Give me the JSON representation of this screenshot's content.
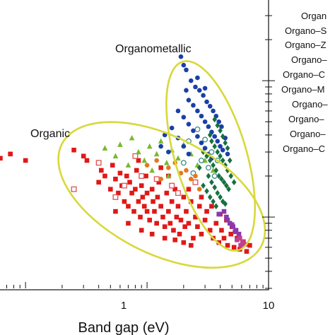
{
  "chart_data": {
    "type": "scatter",
    "xlabel": "Band gap (eV)",
    "x_scale": "log",
    "xlim": [
      0.06,
      10
    ],
    "y_scale": "log",
    "ylim": [
      0.3,
      40
    ],
    "x_ticks": [
      {
        "value": 1,
        "label": "1"
      },
      {
        "value": 10,
        "label": "10"
      }
    ],
    "y_ticks_major": [
      {
        "value": 10,
        "label": ""
      }
    ],
    "annotations": [
      {
        "text": "Organometallic",
        "group": "organometallic"
      },
      {
        "text": "Organic",
        "group": "organic"
      }
    ],
    "envelope_color": "#d8d83a",
    "legend": {
      "placement": "outside-right",
      "entries": [
        {
          "label": "Organ",
          "color": "#1a3fa8"
        },
        {
          "label": "Organo–S",
          "color": "#e01818"
        },
        {
          "label": "Organo–Z",
          "color": "#7ab830"
        },
        {
          "label": "Organo–",
          "color": "#177040"
        },
        {
          "label": "Organo–C",
          "color": "#3a8a8a"
        },
        {
          "label": "Organo–M",
          "color": "#8a3aa8"
        },
        {
          "label": "Organo–",
          "color": "#d08090"
        },
        {
          "label": "Organo–",
          "color": "#c04090"
        },
        {
          "label": "Organo–",
          "color": "#2f5f9f"
        },
        {
          "label": "Organo–C",
          "color": "#556b2f"
        }
      ]
    },
    "series": [
      {
        "group": "organic",
        "color": "#e01818",
        "marker": "square",
        "points": [
          [
            0.062,
            2.7
          ],
          [
            0.075,
            2.9
          ],
          [
            0.1,
            2.6
          ],
          [
            0.25,
            3.1
          ],
          [
            0.3,
            2.8
          ],
          [
            0.32,
            2.6
          ],
          [
            0.4,
            1.8
          ],
          [
            0.42,
            2.2
          ],
          [
            0.45,
            2.0
          ],
          [
            0.5,
            1.6
          ],
          [
            0.52,
            2.4
          ],
          [
            0.55,
            1.9
          ],
          [
            0.58,
            1.5
          ],
          [
            0.6,
            2.1
          ],
          [
            0.62,
            1.7
          ],
          [
            0.65,
            1.3
          ],
          [
            0.68,
            2.0
          ],
          [
            0.7,
            1.2
          ],
          [
            0.72,
            1.8
          ],
          [
            0.75,
            1.5
          ],
          [
            0.78,
            1.1
          ],
          [
            0.8,
            1.6
          ],
          [
            0.82,
            2.2
          ],
          [
            0.85,
            1.3
          ],
          [
            0.88,
            1.0
          ],
          [
            0.9,
            1.7
          ],
          [
            0.92,
            1.4
          ],
          [
            0.95,
            1.2
          ],
          [
            0.98,
            2.0
          ],
          [
            1.0,
            1.5
          ],
          [
            1.0,
            1.1
          ],
          [
            1.05,
            0.95
          ],
          [
            1.1,
            1.6
          ],
          [
            1.12,
            1.3
          ],
          [
            1.15,
            1.1
          ],
          [
            1.2,
            0.9
          ],
          [
            1.22,
            1.4
          ],
          [
            1.25,
            1.8
          ],
          [
            1.3,
            1.2
          ],
          [
            1.35,
            1.0
          ],
          [
            1.4,
            0.85
          ],
          [
            1.45,
            1.5
          ],
          [
            1.5,
            1.1
          ],
          [
            1.55,
            0.9
          ],
          [
            1.6,
            1.3
          ],
          [
            1.65,
            0.8
          ],
          [
            1.7,
            1.6
          ],
          [
            1.75,
            1.0
          ],
          [
            1.8,
            1.2
          ],
          [
            1.85,
            0.75
          ],
          [
            1.9,
            0.95
          ],
          [
            2.0,
            1.4
          ],
          [
            2.05,
            0.85
          ],
          [
            2.1,
            1.1
          ],
          [
            2.2,
            0.9
          ],
          [
            2.3,
            1.3
          ],
          [
            2.4,
            0.7
          ],
          [
            2.5,
            1.0
          ],
          [
            2.6,
            0.85
          ],
          [
            2.7,
            1.2
          ],
          [
            2.8,
            0.75
          ],
          [
            3.0,
            0.95
          ],
          [
            3.1,
            1.1
          ],
          [
            3.3,
            0.8
          ],
          [
            3.5,
            0.7
          ],
          [
            3.7,
            0.9
          ],
          [
            3.9,
            0.65
          ],
          [
            4.1,
            0.8
          ],
          [
            4.3,
            0.7
          ],
          [
            4.6,
            0.62
          ],
          [
            4.9,
            0.75
          ],
          [
            5.2,
            0.6
          ],
          [
            5.5,
            0.7
          ],
          [
            5.8,
            0.58
          ],
          [
            6.2,
            0.66
          ],
          [
            6.6,
            0.56
          ],
          [
            7.0,
            0.62
          ],
          [
            1.3,
            2.3
          ],
          [
            0.55,
            1.1
          ],
          [
            0.7,
            0.9
          ],
          [
            0.9,
            0.8
          ],
          [
            1.1,
            0.75
          ],
          [
            1.4,
            0.7
          ],
          [
            1.7,
            0.68
          ],
          [
            2.0,
            0.65
          ],
          [
            2.3,
            0.62
          ],
          [
            0.85,
            2.6
          ],
          [
            1.5,
            2.0
          ],
          [
            2.2,
            1.6
          ],
          [
            2.8,
            1.4
          ],
          [
            3.4,
            1.2
          ],
          [
            4.0,
            1.05
          ],
          [
            4.5,
            0.95
          ],
          [
            5.0,
            0.85
          ]
        ]
      },
      {
        "group": "organic",
        "color": "#e05050",
        "marker": "open-square",
        "points": [
          [
            0.25,
            1.6
          ],
          [
            0.4,
            2.5
          ],
          [
            0.55,
            1.4
          ],
          [
            0.65,
            1.7
          ],
          [
            0.8,
            2.8
          ],
          [
            1.2,
            1.9
          ],
          [
            1.8,
            1.5
          ],
          [
            2.5,
            1.8
          ],
          [
            0.9,
            2.0
          ],
          [
            1.6,
            1.7
          ]
        ]
      },
      {
        "group": "organic",
        "color": "#7ab830",
        "marker": "triangle",
        "points": [
          [
            0.45,
            3.2
          ],
          [
            0.55,
            2.8
          ],
          [
            0.6,
            3.4
          ],
          [
            0.75,
            3.8
          ],
          [
            0.85,
            3.0
          ],
          [
            0.95,
            2.6
          ],
          [
            1.05,
            3.3
          ],
          [
            1.2,
            2.9
          ],
          [
            1.3,
            3.6
          ],
          [
            1.45,
            2.5
          ],
          [
            1.6,
            3.1
          ],
          [
            1.8,
            2.7
          ],
          [
            2.0,
            3.4
          ],
          [
            2.3,
            2.9
          ],
          [
            2.6,
            2.4
          ],
          [
            3.0,
            2.6
          ],
          [
            3.5,
            2.2
          ],
          [
            1.1,
            2.2
          ],
          [
            0.7,
            2.4
          ],
          [
            1.5,
            2.0
          ]
        ]
      },
      {
        "group": "organometallic",
        "color": "#1a3fa8",
        "marker": "circle",
        "points": [
          [
            1.9,
            15
          ],
          [
            2.0,
            13
          ],
          [
            2.1,
            12
          ],
          [
            2.3,
            10
          ],
          [
            2.5,
            9
          ],
          [
            2.7,
            8.5
          ],
          [
            2.9,
            7.8
          ],
          [
            3.1,
            7
          ],
          [
            3.3,
            6.5
          ],
          [
            3.5,
            6
          ],
          [
            3.7,
            5.5
          ],
          [
            3.9,
            5
          ],
          [
            4.1,
            4.6
          ],
          [
            2.2,
            7.2
          ],
          [
            2.4,
            6.6
          ],
          [
            2.6,
            6
          ],
          [
            2.8,
            5.5
          ],
          [
            3.0,
            5
          ],
          [
            3.2,
            4.6
          ],
          [
            3.4,
            4.2
          ],
          [
            3.6,
            3.9
          ],
          [
            3.8,
            3.6
          ],
          [
            4.0,
            3.3
          ],
          [
            4.2,
            3.1
          ],
          [
            1.8,
            6.0
          ],
          [
            2.0,
            5.4
          ],
          [
            2.2,
            4.8
          ],
          [
            2.4,
            4.3
          ],
          [
            2.6,
            3.9
          ],
          [
            2.8,
            3.5
          ],
          [
            3.0,
            3.2
          ],
          [
            3.2,
            2.9
          ],
          [
            3.4,
            2.7
          ],
          [
            1.6,
            4.5
          ],
          [
            1.8,
            3.8
          ],
          [
            2.0,
            3.3
          ],
          [
            2.2,
            2.9
          ],
          [
            1.5,
            3.0
          ],
          [
            1.3,
            3.3
          ],
          [
            2.6,
            10.5
          ],
          [
            3.0,
            8.8
          ],
          [
            2.1,
            8.5
          ],
          [
            4.4,
            3.8
          ],
          [
            4.6,
            2.9
          ],
          [
            1.4,
            4.0
          ]
        ]
      },
      {
        "group": "organometallic",
        "color": "#177040",
        "marker": "diamond",
        "points": [
          [
            3.6,
            5.2
          ],
          [
            3.8,
            4.7
          ],
          [
            4.0,
            4.3
          ],
          [
            4.2,
            3.9
          ],
          [
            4.4,
            3.5
          ],
          [
            4.6,
            3.2
          ],
          [
            3.4,
            3.6
          ],
          [
            3.6,
            3.3
          ],
          [
            3.8,
            3.0
          ],
          [
            4.0,
            2.8
          ],
          [
            4.2,
            2.6
          ],
          [
            4.4,
            2.4
          ],
          [
            4.6,
            2.2
          ],
          [
            3.3,
            2.6
          ],
          [
            3.5,
            2.4
          ],
          [
            3.7,
            2.2
          ],
          [
            3.9,
            2.0
          ],
          [
            4.1,
            1.9
          ],
          [
            4.3,
            1.8
          ],
          [
            4.5,
            1.7
          ],
          [
            4.7,
            1.6
          ],
          [
            3.2,
            2.0
          ],
          [
            3.4,
            1.8
          ],
          [
            3.6,
            1.65
          ],
          [
            3.8,
            1.5
          ],
          [
            4.0,
            1.4
          ],
          [
            4.2,
            1.3
          ],
          [
            4.4,
            1.25
          ],
          [
            2.9,
            1.7
          ],
          [
            3.1,
            1.55
          ],
          [
            3.3,
            1.4
          ],
          [
            3.5,
            1.3
          ],
          [
            3.7,
            1.2
          ],
          [
            4.9,
            2.0
          ],
          [
            5.2,
            1.8
          ],
          [
            2.7,
            2.3
          ],
          [
            2.9,
            3.0
          ],
          [
            3.1,
            2.8
          ],
          [
            3.3,
            4.0
          ],
          [
            4.8,
            2.6
          ]
        ]
      },
      {
        "group": "organometallic",
        "color": "#3a8a8a",
        "marker": "open-circle",
        "points": [
          [
            2.6,
            4.4
          ],
          [
            3.0,
            3.7
          ],
          [
            3.4,
            3.0
          ],
          [
            2.2,
            3.6
          ],
          [
            2.8,
            2.6
          ],
          [
            3.2,
            2.3
          ],
          [
            3.6,
            2.0
          ],
          [
            2.4,
            2.1
          ],
          [
            2.0,
            2.5
          ],
          [
            3.8,
            2.6
          ]
        ]
      },
      {
        "group": "organometallic",
        "color": "#8a3aa8",
        "marker": "square",
        "points": [
          [
            4.5,
            1.0
          ],
          [
            4.8,
            0.9
          ],
          [
            5.1,
            0.85
          ],
          [
            5.4,
            0.8
          ],
          [
            5.7,
            0.75
          ],
          [
            4.3,
            1.1
          ],
          [
            4.6,
            0.95
          ],
          [
            5.0,
            0.88
          ],
          [
            5.3,
            0.78
          ],
          [
            3.9,
            1.05
          ]
        ]
      },
      {
        "group": "organometallic",
        "color": "#c04090",
        "marker": "square",
        "points": [
          [
            5.8,
            0.7
          ],
          [
            6.1,
            0.66
          ],
          [
            6.4,
            0.63
          ],
          [
            5.5,
            0.68
          ],
          [
            5.9,
            0.62
          ]
        ]
      },
      {
        "group": "organic",
        "color": "#e07a20",
        "marker": "circle",
        "points": [
          [
            1.2,
            2.6
          ],
          [
            1.5,
            2.3
          ],
          [
            1.9,
            2.1
          ],
          [
            2.3,
            1.9
          ],
          [
            1.7,
            2.5
          ],
          [
            2.1,
            2.2
          ],
          [
            2.5,
            2.0
          ],
          [
            1.3,
            1.9
          ],
          [
            2.7,
            1.6
          ],
          [
            1.0,
            2.4
          ]
        ]
      }
    ],
    "envelopes": [
      {
        "name": "organic",
        "label": "Organic"
      },
      {
        "name": "organometallic",
        "label": "Organometallic"
      }
    ]
  }
}
